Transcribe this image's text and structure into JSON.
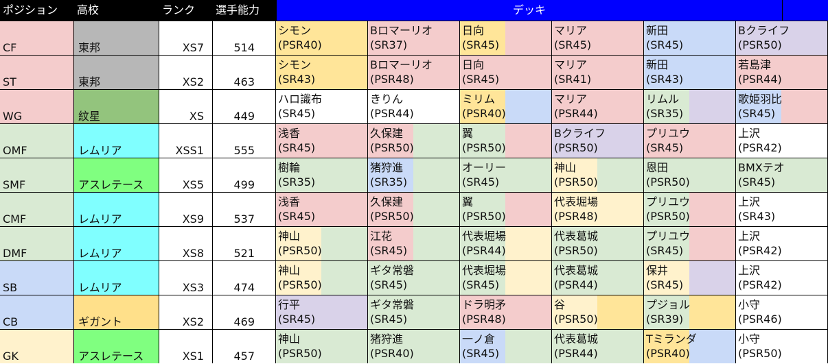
{
  "header": {
    "position": "ポジション",
    "school": "高校",
    "rank": "ランク",
    "power": "選手能力",
    "deck": "デッキ"
  },
  "colors": {
    "red": "#f4cccc",
    "orange": "#ffe599",
    "green": "#d9ead3",
    "blue": "#c9daf8",
    "purple": "#d9d2e9",
    "pale_yellow": "#fff2cc",
    "white": "#ffffff",
    "gray": "#b7b7b7",
    "dark_green": "#93c47d",
    "cyan": "#80ffff",
    "lime": "#80ff80",
    "gold": "#ffe08a",
    "header_blue": "#0000ff"
  },
  "rows": [
    {
      "position": "CF",
      "pos_color": "red",
      "school": "東邦",
      "school_color": "gray",
      "rank": "XS7",
      "power": "514",
      "deck": [
        {
          "name": "シモン",
          "rarity": "(PSR40)",
          "c1": "orange",
          "c2": "orange"
        },
        {
          "name": "Bロマーリオ",
          "rarity": "(SR37)",
          "c1": "red",
          "c2": "red"
        },
        {
          "name": "日向",
          "rarity": "(SR45)",
          "c1": "orange",
          "c2": "red"
        },
        {
          "name": "マリア",
          "rarity": "(SR45)",
          "c1": "red",
          "c2": "red"
        },
        {
          "name": "新田",
          "rarity": "(SR45)",
          "c1": "blue",
          "c2": "blue"
        },
        {
          "name": "Bクライフ",
          "rarity": "(PSR50)",
          "c1": "purple",
          "c2": "purple"
        }
      ]
    },
    {
      "position": "ST",
      "pos_color": "red",
      "school": "東邦",
      "school_color": "gray",
      "rank": "XS2",
      "power": "463",
      "deck": [
        {
          "name": "シモン",
          "rarity": "(SR43)",
          "c1": "orange",
          "c2": "orange"
        },
        {
          "name": "Bロマーリオ",
          "rarity": "(PSR48)",
          "c1": "red",
          "c2": "red"
        },
        {
          "name": "日向",
          "rarity": "(SR45)",
          "c1": "red",
          "c2": "red"
        },
        {
          "name": "マリア",
          "rarity": "(SR41)",
          "c1": "red",
          "c2": "red"
        },
        {
          "name": "新田",
          "rarity": "(SR43)",
          "c1": "blue",
          "c2": "blue"
        },
        {
          "name": "若島津",
          "rarity": "(PSR44)",
          "c1": "red",
          "c2": "red"
        }
      ]
    },
    {
      "position": "WG",
      "pos_color": "red",
      "school": "紋星",
      "school_color": "dark_green",
      "rank": "XS",
      "power": "449",
      "deck": [
        {
          "name": "ハロ識布",
          "rarity": "(SR45)",
          "c1": "white",
          "c2": "white"
        },
        {
          "name": "きりん",
          "rarity": "(PSR44)",
          "c1": "white",
          "c2": "white"
        },
        {
          "name": "ミリム",
          "rarity": "(PSR40)",
          "c1": "orange",
          "c2": "blue"
        },
        {
          "name": "マリア",
          "rarity": "(PSR44)",
          "c1": "red",
          "c2": "red"
        },
        {
          "name": "リムル",
          "rarity": "(SR35)",
          "c1": "green",
          "c2": "purple"
        },
        {
          "name": "歌姫羽比",
          "rarity": "(SR45)",
          "c1": "blue",
          "c2": "red"
        }
      ]
    },
    {
      "position": "OMF",
      "pos_color": "green",
      "school": "レムリア",
      "school_color": "cyan",
      "rank": "XSS1",
      "power": "555",
      "deck": [
        {
          "name": "浅香",
          "rarity": "(SR45)",
          "c1": "red",
          "c2": "red"
        },
        {
          "name": "久保建",
          "rarity": "(PSR50)",
          "c1": "red",
          "c2": "green"
        },
        {
          "name": "翼",
          "rarity": "(PSR50)",
          "c1": "green",
          "c2": "red"
        },
        {
          "name": "Bクライフ",
          "rarity": "(PSR50)",
          "c1": "purple",
          "c2": "purple"
        },
        {
          "name": "プリユウ",
          "rarity": "(SR45)",
          "c1": "red",
          "c2": "red"
        },
        {
          "name": "上沢",
          "rarity": "(PSR42)",
          "c1": "white",
          "c2": "white"
        }
      ]
    },
    {
      "position": "SMF",
      "pos_color": "green",
      "school": "アスレテース",
      "school_color": "lime",
      "rank": "XS5",
      "power": "499",
      "deck": [
        {
          "name": "樹輪",
          "rarity": "(SR35)",
          "c1": "green",
          "c2": "green"
        },
        {
          "name": "猪狩進",
          "rarity": "(SR35)",
          "c1": "blue",
          "c2": "green"
        },
        {
          "name": "オーリー",
          "rarity": "(SR45)",
          "c1": "green",
          "c2": "green"
        },
        {
          "name": "神山",
          "rarity": "(PSR50)",
          "c1": "pale_yellow",
          "c2": "green"
        },
        {
          "name": "恩田",
          "rarity": "(PSR50)",
          "c1": "green",
          "c2": "green"
        },
        {
          "name": "BMXテオ",
          "rarity": "(SR45)",
          "c1": "green",
          "c2": "green"
        }
      ]
    },
    {
      "position": "CMF",
      "pos_color": "green",
      "school": "レムリア",
      "school_color": "cyan",
      "rank": "XS9",
      "power": "537",
      "deck": [
        {
          "name": "浅香",
          "rarity": "(SR45)",
          "c1": "red",
          "c2": "red"
        },
        {
          "name": "久保建",
          "rarity": "(PSR50)",
          "c1": "red",
          "c2": "green"
        },
        {
          "name": "翼",
          "rarity": "(PSR50)",
          "c1": "green",
          "c2": "red"
        },
        {
          "name": "代表堀場",
          "rarity": "(PSR48)",
          "c1": "pale_yellow",
          "c2": "pale_yellow"
        },
        {
          "name": "プリユウ",
          "rarity": "(PSR50)",
          "c1": "green",
          "c2": "red"
        },
        {
          "name": "上沢",
          "rarity": "(SR43)",
          "c1": "white",
          "c2": "white"
        }
      ]
    },
    {
      "position": "DMF",
      "pos_color": "green",
      "school": "レムリア",
      "school_color": "cyan",
      "rank": "XS8",
      "power": "521",
      "deck": [
        {
          "name": "神山",
          "rarity": "(PSR50)",
          "c1": "pale_yellow",
          "c2": "green"
        },
        {
          "name": "江花",
          "rarity": "(SR45)",
          "c1": "red",
          "c2": "green"
        },
        {
          "name": "代表堀場",
          "rarity": "(PSR44)",
          "c1": "green",
          "c2": "pale_yellow"
        },
        {
          "name": "代表葛城",
          "rarity": "(PSR50)",
          "c1": "green",
          "c2": "green"
        },
        {
          "name": "プリユウ",
          "rarity": "(SR45)",
          "c1": "green",
          "c2": "red"
        },
        {
          "name": "上沢",
          "rarity": "(PSR42)",
          "c1": "white",
          "c2": "white"
        }
      ]
    },
    {
      "position": "SB",
      "pos_color": "blue",
      "school": "レムリア",
      "school_color": "cyan",
      "rank": "XS3",
      "power": "474",
      "deck": [
        {
          "name": "神山",
          "rarity": "(PSR50)",
          "c1": "pale_yellow",
          "c2": "green"
        },
        {
          "name": "ギタ常磐",
          "rarity": "(SR45)",
          "c1": "green",
          "c2": "green"
        },
        {
          "name": "代表堀場",
          "rarity": "(SR45)",
          "c1": "green",
          "c2": "pale_yellow"
        },
        {
          "name": "代表葛城",
          "rarity": "(PSR44)",
          "c1": "green",
          "c2": "green"
        },
        {
          "name": "保井",
          "rarity": "(SR45)",
          "c1": "pale_yellow",
          "c2": "purple"
        },
        {
          "name": "上沢",
          "rarity": "(PSR42)",
          "c1": "white",
          "c2": "white"
        }
      ]
    },
    {
      "position": "CB",
      "pos_color": "blue",
      "school": "ギガント",
      "school_color": "gold",
      "rank": "XS2",
      "power": "469",
      "deck": [
        {
          "name": "行平",
          "rarity": "(SR45)",
          "c1": "purple",
          "c2": "purple"
        },
        {
          "name": "ギタ常磐",
          "rarity": "(SR45)",
          "c1": "green",
          "c2": "green"
        },
        {
          "name": "ドラ明矛",
          "rarity": "(PSR48)",
          "c1": "red",
          "c2": "red"
        },
        {
          "name": "谷",
          "rarity": "(PSR50)",
          "c1": "pale_yellow",
          "c2": "orange"
        },
        {
          "name": "プジョル",
          "rarity": "(SR39)",
          "c1": "green",
          "c2": "orange"
        },
        {
          "name": "小守",
          "rarity": "(PSR46)",
          "c1": "white",
          "c2": "white"
        }
      ]
    },
    {
      "position": "GK",
      "pos_color": "pale_yellow",
      "school": "アスレテース",
      "school_color": "lime",
      "rank": "XS1",
      "power": "457",
      "deck": [
        {
          "name": "神山",
          "rarity": "(PSR50)",
          "c1": "green",
          "c2": "green"
        },
        {
          "name": "猪狩進",
          "rarity": "(PSR40)",
          "c1": "green",
          "c2": "green"
        },
        {
          "name": "一ノ倉",
          "rarity": "(SR45)",
          "c1": "blue",
          "c2": "green"
        },
        {
          "name": "代表葛城",
          "rarity": "(PSR44)",
          "c1": "green",
          "c2": "green"
        },
        {
          "name": "Tミランダ",
          "rarity": "(PSR40)",
          "c1": "orange",
          "c2": "blue"
        },
        {
          "name": "小守",
          "rarity": "(PSR50)",
          "c1": "white",
          "c2": "white"
        }
      ]
    }
  ]
}
